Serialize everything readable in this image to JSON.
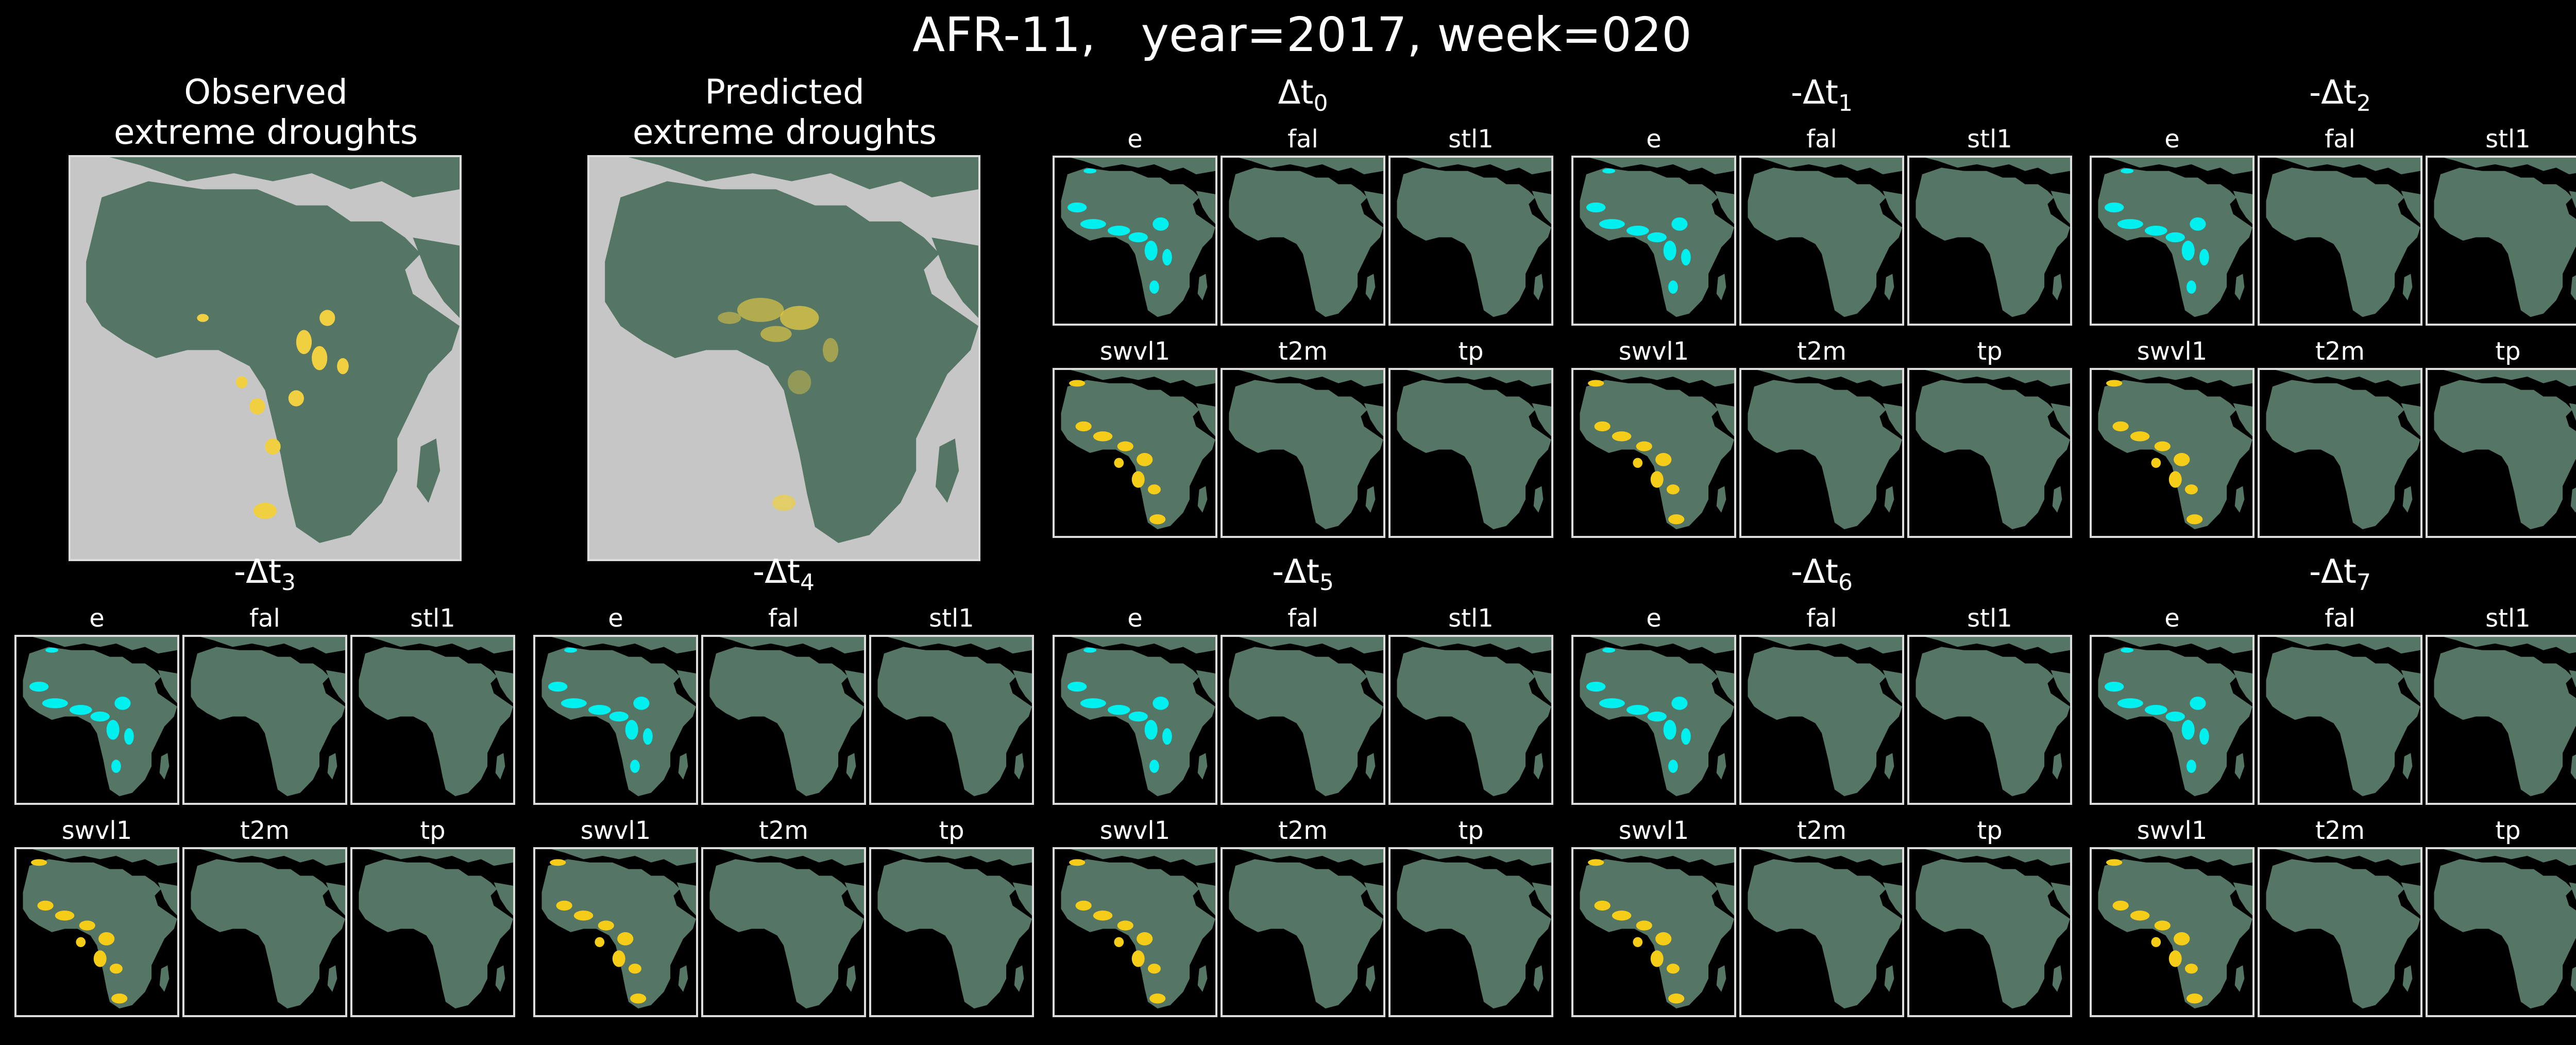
{
  "figure": {
    "title": "AFR-11,   year=2017, week=020",
    "observed_label": [
      "Observed",
      "extreme droughts"
    ],
    "predicted_label": [
      "Predicted",
      "extreme droughts"
    ]
  },
  "colors": {
    "background": "#000000",
    "land": "#557565",
    "big_map_ocean": "#c6c6c6",
    "small_map_ocean": "#000000",
    "frame": "#dcdcdc",
    "evaporation_highlight": "#00f0f0",
    "soil_moisture_highlight": "#f5cc18",
    "drought_highlight": "#f0d040"
  },
  "groups": [
    {
      "base": "Δt",
      "prefix": "",
      "sub": "0",
      "top": [
        "e",
        "fal",
        "stl1"
      ],
      "bottom": [
        "swvl1",
        "t2m",
        "tp"
      ]
    },
    {
      "base": "Δt",
      "prefix": "-",
      "sub": "1",
      "top": [
        "e",
        "fal",
        "stl1"
      ],
      "bottom": [
        "swvl1",
        "t2m",
        "tp"
      ]
    },
    {
      "base": "Δt",
      "prefix": "-",
      "sub": "2",
      "top": [
        "e",
        "fal",
        "stl1"
      ],
      "bottom": [
        "swvl1",
        "t2m",
        "tp"
      ]
    },
    {
      "base": "Δt",
      "prefix": "-",
      "sub": "3",
      "top": [
        "e",
        "fal",
        "stl1"
      ],
      "bottom": [
        "swvl1",
        "t2m",
        "tp"
      ]
    },
    {
      "base": "Δt",
      "prefix": "-",
      "sub": "4",
      "top": [
        "e",
        "fal",
        "stl1"
      ],
      "bottom": [
        "swvl1",
        "t2m",
        "tp"
      ]
    },
    {
      "base": "Δt",
      "prefix": "-",
      "sub": "5",
      "top": [
        "e",
        "fal",
        "stl1"
      ],
      "bottom": [
        "swvl1",
        "t2m",
        "tp"
      ]
    },
    {
      "base": "Δt",
      "prefix": "-",
      "sub": "6",
      "top": [
        "e",
        "fal",
        "stl1"
      ],
      "bottom": [
        "swvl1",
        "t2m",
        "tp"
      ]
    },
    {
      "base": "Δt",
      "prefix": "-",
      "sub": "7",
      "top": [
        "e",
        "fal",
        "stl1"
      ],
      "bottom": [
        "swvl1",
        "t2m",
        "tp"
      ]
    }
  ]
}
